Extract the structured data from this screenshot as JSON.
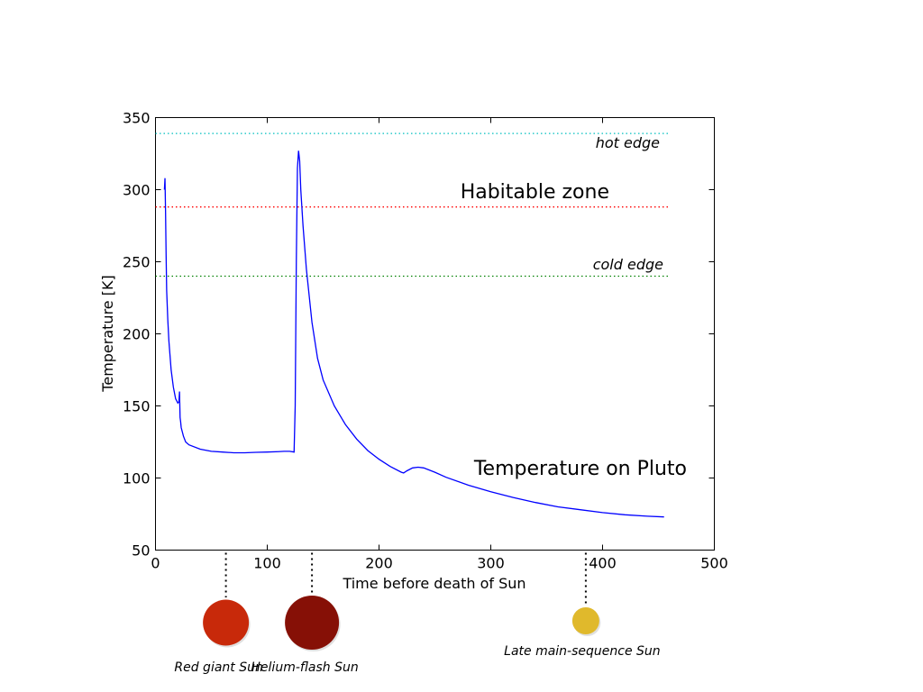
{
  "chart_data": {
    "type": "line",
    "xlabel": "Time before death of Sun",
    "ylabel": "Temperature [K]",
    "xlim": [
      0,
      500
    ],
    "ylim": [
      50,
      350
    ],
    "xticks": [
      "0",
      "100",
      "200",
      "300",
      "400",
      "500"
    ],
    "yticks": [
      "50",
      "100",
      "150",
      "200",
      "250",
      "300",
      "350"
    ],
    "grid": false,
    "series": [
      {
        "name": "Temperature on Pluto",
        "color": "#0000ff",
        "x": [
          8,
          8.5,
          9,
          9.5,
          10,
          11,
          12,
          14,
          16,
          18,
          20,
          21,
          21.5,
          22,
          22.5,
          23,
          25,
          27,
          30,
          40,
          50,
          60,
          70,
          80,
          90,
          100,
          110,
          115,
          120,
          124,
          125,
          126,
          127,
          128,
          129,
          130,
          132,
          135,
          140,
          145,
          150,
          160,
          170,
          180,
          190,
          200,
          210,
          220,
          222,
          225,
          230,
          235,
          240,
          250,
          260,
          280,
          300,
          320,
          340,
          360,
          380,
          400,
          420,
          440,
          455
        ],
        "y": [
          300,
          308,
          285,
          255,
          230,
          210,
          195,
          175,
          163,
          155,
          152,
          153,
          160,
          142,
          139,
          135,
          129,
          125,
          123,
          120,
          118.5,
          118,
          117.5,
          117.5,
          117.8,
          118,
          118.3,
          118.5,
          118.5,
          118,
          150,
          250,
          315,
          327,
          320,
          300,
          275,
          245,
          208,
          183,
          168,
          150,
          137,
          127,
          119,
          113,
          108,
          104,
          103.5,
          105,
          107,
          107.5,
          107,
          104,
          100.5,
          95,
          90.5,
          86.5,
          83,
          80,
          78,
          76,
          74.5,
          73.5,
          73
        ]
      }
    ],
    "reference_lines": [
      {
        "name": "hot edge",
        "y": 339,
        "color": "#00bfbf",
        "x_end": 460
      },
      {
        "name": "Habitable zone",
        "y": 288,
        "color": "#ff0000",
        "x_end": 460
      },
      {
        "name": "cold edge",
        "y": 240,
        "color": "#008000",
        "x_end": 460
      }
    ],
    "annotations": {
      "hot_edge": "hot edge",
      "habitable_zone": "Habitable zone",
      "cold_edge": "cold edge",
      "pluto": "Temperature on Pluto"
    },
    "sun_markers": [
      {
        "label": "Red giant Sun",
        "x": 63,
        "color": "#c8290a",
        "size": "medium"
      },
      {
        "label": "Helium-flash Sun",
        "x": 140,
        "color": "#861006",
        "size": "large"
      },
      {
        "label": "Late main-sequence Sun",
        "x": 385,
        "color": "#e0b92c",
        "size": "small"
      }
    ]
  }
}
